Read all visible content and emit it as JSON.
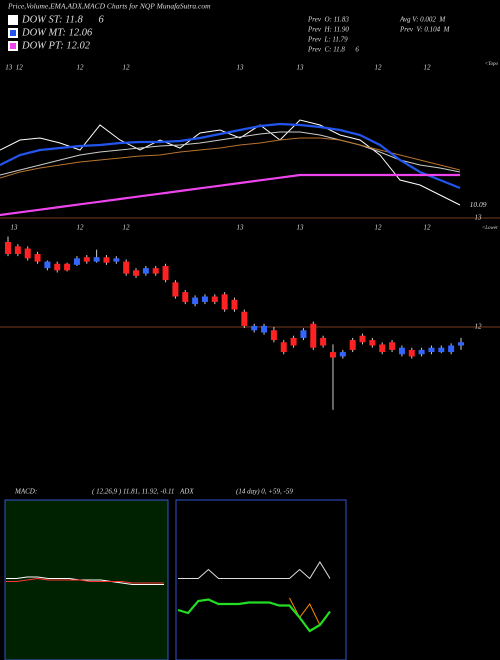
{
  "header": {
    "title": "Price,Volume,EMA,ADX,MACD Charts for NQP MunafaSutra.com",
    "legend": [
      {
        "label": "DOW ST: 11.8      6",
        "color": "#ffffff"
      },
      {
        "label": "DOW MT: 12.06",
        "color": "#2255ee"
      },
      {
        "label": "DOW PT: 12.02",
        "color": "#ee44ee"
      }
    ],
    "stats": [
      "Prev  O: 11.83",
      "Prev  H: 11.90",
      "Prev  L: 11.79",
      "Prev  C: 11.8      6",
      "Avg V: 0.002  M",
      "Prev  V: 0.104  M"
    ]
  },
  "chart_data": [
    {
      "type": "line",
      "ylim": [
        9.8,
        13.4
      ],
      "yticks": [
        10.09
      ],
      "grid": false,
      "x_labels": [
        "13  12",
        "12",
        "12",
        "13",
        "13",
        "12",
        "12"
      ],
      "corner_label": "<Topo",
      "series": [
        {
          "color": "#ffffff",
          "values": [
            11.75,
            12.05,
            12.11,
            11.96,
            11.75,
            12.5,
            12.05,
            11.75,
            12.05,
            11.81,
            12.26,
            12.35,
            12.11,
            12.5,
            12.05,
            12.65,
            12.5,
            12.2,
            12.05,
            11.6,
            10.85,
            10.7,
            10.4,
            10.1
          ]
        },
        {
          "color": "#cccccc",
          "values": [
            11.0,
            11.15,
            11.3,
            11.45,
            11.6,
            11.69,
            11.75,
            11.81,
            11.87,
            11.9,
            11.96,
            12.05,
            12.14,
            12.23,
            12.29,
            12.29,
            12.2,
            12.05,
            11.9,
            11.69,
            11.45,
            11.3,
            11.21,
            11.09
          ]
        },
        {
          "color": "#b8732e",
          "values": [
            10.91,
            11.09,
            11.21,
            11.3,
            11.39,
            11.45,
            11.51,
            11.57,
            11.6,
            11.69,
            11.75,
            11.81,
            11.9,
            11.96,
            12.05,
            12.11,
            12.11,
            12.05,
            11.9,
            11.75,
            11.6,
            11.45,
            11.3,
            11.15
          ]
        },
        {
          "color": "#2255ee",
          "values": [
            11.3,
            11.6,
            11.75,
            11.81,
            11.87,
            11.9,
            11.96,
            11.99,
            11.99,
            12.02,
            12.11,
            12.23,
            12.35,
            12.47,
            12.53,
            12.5,
            12.44,
            12.35,
            12.2,
            11.9,
            11.45,
            11.09,
            10.85,
            10.61
          ]
        },
        {
          "color": "#ee44ee",
          "values": [
            9.8,
            9.88,
            9.96,
            10.04,
            10.12,
            10.2,
            10.28,
            10.36,
            10.44,
            10.52,
            10.6,
            10.68,
            10.76,
            10.84,
            10.92,
            11.0,
            11.0,
            11.0,
            11.0,
            11.0,
            11.0,
            11.0,
            11.0,
            11.0
          ]
        }
      ]
    },
    {
      "type": "candlestick",
      "ylim": [
        11.0,
        13.2
      ],
      "yticks": [
        13,
        12
      ],
      "grid": true,
      "x_labels": [
        "13",
        "12",
        "12",
        "13",
        "13",
        "12",
        "12"
      ],
      "corner_label": "<Lower",
      "up_color": "#3366ff",
      "down_color": "#ff2222",
      "wick_color": "#cccccc",
      "open": [
        12.78,
        12.74,
        12.72,
        12.67,
        12.54,
        12.58,
        12.58,
        12.57,
        12.64,
        12.6,
        12.64,
        12.6,
        12.6,
        12.52,
        12.49,
        12.54,
        12.56,
        12.41,
        12.32,
        12.21,
        12.23,
        12.28,
        12.3,
        12.25,
        12.14,
        11.97,
        11.95,
        11.97,
        11.86,
        11.9,
        11.9,
        12.03,
        11.9,
        11.77,
        11.73,
        11.88,
        11.92,
        11.88,
        11.84,
        11.86,
        11.75,
        11.79,
        11.75,
        11.77,
        11.77,
        11.77,
        11.83
      ],
      "high": [
        12.83,
        12.76,
        12.74,
        12.69,
        12.61,
        12.6,
        12.59,
        12.65,
        12.66,
        12.71,
        12.66,
        12.65,
        12.62,
        12.54,
        12.56,
        12.56,
        12.58,
        12.43,
        12.34,
        12.29,
        12.3,
        12.3,
        12.32,
        12.27,
        12.16,
        12.03,
        12.03,
        12.0,
        11.88,
        11.92,
        11.99,
        12.05,
        11.92,
        11.84,
        11.79,
        11.9,
        11.94,
        11.9,
        11.86,
        11.88,
        11.83,
        11.81,
        11.81,
        11.83,
        11.83,
        11.85,
        11.9
      ],
      "low": [
        12.65,
        12.65,
        12.61,
        12.58,
        12.52,
        12.5,
        12.51,
        12.56,
        12.58,
        12.59,
        12.57,
        12.58,
        12.47,
        12.45,
        12.47,
        12.47,
        12.41,
        12.26,
        12.21,
        12.19,
        12.21,
        12.21,
        12.14,
        12.14,
        11.99,
        11.95,
        11.93,
        11.86,
        11.75,
        11.81,
        11.88,
        11.79,
        11.81,
        11.24,
        11.71,
        11.77,
        11.84,
        11.81,
        11.75,
        11.77,
        11.73,
        11.71,
        11.73,
        11.75,
        11.76,
        11.75,
        11.79
      ],
      "close": [
        12.67,
        12.67,
        12.63,
        12.6,
        12.6,
        12.52,
        12.52,
        12.63,
        12.6,
        12.64,
        12.59,
        12.63,
        12.49,
        12.47,
        12.54,
        12.49,
        12.43,
        12.28,
        12.23,
        12.27,
        12.28,
        12.23,
        12.16,
        12.16,
        12.01,
        12.01,
        12.01,
        11.88,
        11.77,
        11.83,
        11.97,
        11.81,
        11.83,
        11.72,
        11.77,
        11.79,
        11.86,
        11.83,
        11.77,
        11.79,
        11.81,
        11.73,
        11.79,
        11.81,
        11.81,
        11.83,
        11.86
      ]
    },
    {
      "type": "line",
      "title": "MACD:",
      "subtitle": "( 12,26,9 ) 11.81, 11.92, -0.11",
      "ylim": [
        -5,
        5
      ],
      "series": [
        {
          "color": "#ffffff",
          "values": [
            0.1,
            0.1,
            0.2,
            0.2,
            0.1,
            0.1,
            0.1,
            0.0,
            0.0,
            0.0,
            -0.1,
            -0.2,
            -0.3,
            -0.3,
            -0.3,
            -0.3
          ]
        },
        {
          "color": "#ff3333",
          "values": [
            -0.1,
            -0.1,
            0.0,
            0.1,
            0.0,
            0.0,
            0.0,
            0.0,
            -0.1,
            -0.1,
            -0.1,
            -0.1,
            -0.2,
            -0.2,
            -0.2,
            -0.2
          ]
        }
      ]
    },
    {
      "type": "line",
      "title": "ADX",
      "subtitle": "(14 day) 0, +59, -59",
      "ylim": [
        0,
        100
      ],
      "series": [
        {
          "color": "#dddddd",
          "values": [
            51,
            51,
            51,
            57,
            51,
            51,
            51,
            51,
            51,
            51,
            51,
            51,
            57,
            51,
            62,
            51
          ]
        },
        {
          "color": "#ff8800",
          "values": [
            null,
            null,
            null,
            null,
            null,
            null,
            null,
            null,
            null,
            null,
            null,
            38,
            25,
            34,
            20,
            null
          ]
        },
        {
          "color": "#22dd22",
          "values": [
            30,
            28,
            36,
            37,
            34,
            34,
            34,
            35,
            35,
            35,
            33,
            33,
            25,
            16,
            20,
            29
          ]
        }
      ]
    }
  ]
}
